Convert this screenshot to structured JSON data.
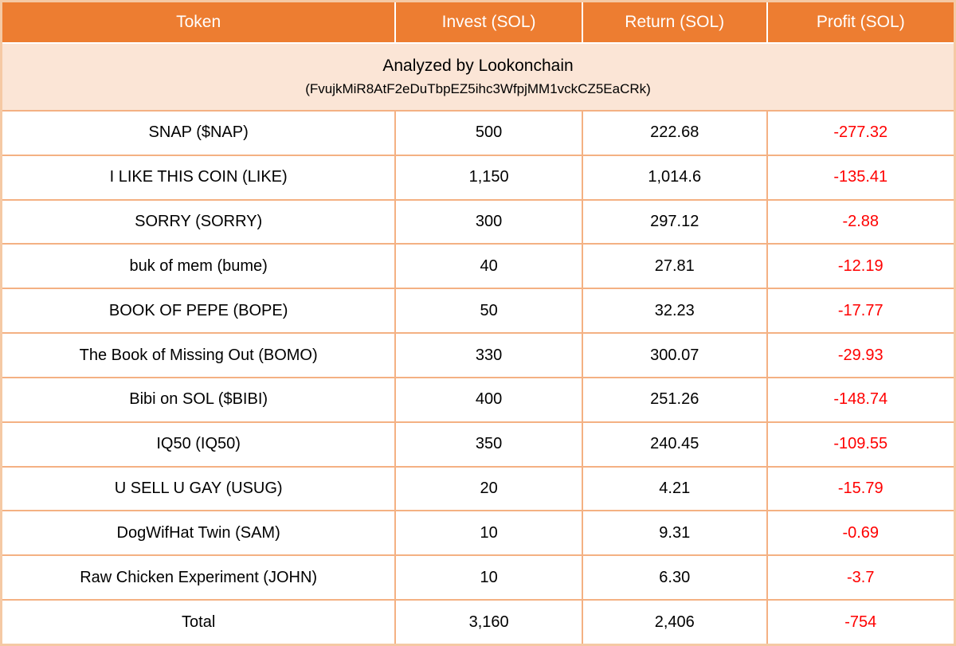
{
  "table": {
    "columns": [
      "Token",
      "Invest (SOL)",
      "Return (SOL)",
      "Profit (SOL)"
    ],
    "banner": {
      "title": "Analyzed by Lookonchain",
      "address": "(FvujkMiR8AtF2eDuTbpEZ5ihc3WfpjMM1vckCZ5EaCRk)"
    },
    "rows": [
      {
        "token": "SNAP ($NAP)",
        "invest": "500",
        "return": "222.68",
        "profit": "-277.32"
      },
      {
        "token": "I LIKE THIS COIN (LIKE)",
        "invest": "1,150",
        "return": "1,014.6",
        "profit": "-135.41"
      },
      {
        "token": "SORRY (SORRY)",
        "invest": "300",
        "return": "297.12",
        "profit": "-2.88"
      },
      {
        "token": "buk of mem (bume)",
        "invest": "40",
        "return": "27.81",
        "profit": "-12.19"
      },
      {
        "token": "BOOK OF PEPE (BOPE)",
        "invest": "50",
        "return": "32.23",
        "profit": "-17.77"
      },
      {
        "token": "The Book of Missing Out (BOMO)",
        "invest": "330",
        "return": "300.07",
        "profit": "-29.93"
      },
      {
        "token": "Bibi on SOL ($BIBI)",
        "invest": "400",
        "return": "251.26",
        "profit": "-148.74"
      },
      {
        "token": "IQ50 (IQ50)",
        "invest": "350",
        "return": "240.45",
        "profit": "-109.55"
      },
      {
        "token": "U SELL U GAY (USUG)",
        "invest": "20",
        "return": "4.21",
        "profit": "-15.79"
      },
      {
        "token": "DogWifHat Twin (SAM)",
        "invest": "10",
        "return": "9.31",
        "profit": "-0.69"
      },
      {
        "token": "Raw Chicken Experiment (JOHN)",
        "invest": "10",
        "return": "6.30",
        "profit": "-3.7"
      },
      {
        "token": "Total",
        "invest": "3,160",
        "return": "2,406",
        "profit": "-754"
      }
    ]
  },
  "colors": {
    "header-bg": "#ED7D31",
    "header-text": "#FFFFFF",
    "banner-bg": "#FBE5D6",
    "border": "#F4B183",
    "outer-border": "#F5C9A4",
    "divider-white": "#FFFFFF",
    "negative": "#FF0000",
    "text": "#000000",
    "row-bg": "#FFFFFF"
  },
  "chart_data": {
    "type": "table",
    "title": "Analyzed by Lookonchain",
    "wallet": "FvujkMiR8AtF2eDuTbpEZ5ihc3WfpjMM1vckCZ5EaCRk",
    "columns": [
      "Token",
      "Invest (SOL)",
      "Return (SOL)",
      "Profit (SOL)"
    ],
    "rows": [
      [
        "SNAP ($NAP)",
        500,
        222.68,
        -277.32
      ],
      [
        "I LIKE THIS COIN (LIKE)",
        1150,
        1014.6,
        -135.41
      ],
      [
        "SORRY (SORRY)",
        300,
        297.12,
        -2.88
      ],
      [
        "buk of mem (bume)",
        40,
        27.81,
        -12.19
      ],
      [
        "BOOK OF PEPE (BOPE)",
        50,
        32.23,
        -17.77
      ],
      [
        "The Book of Missing Out (BOMO)",
        330,
        300.07,
        -29.93
      ],
      [
        "Bibi on SOL ($BIBI)",
        400,
        251.26,
        -148.74
      ],
      [
        "IQ50 (IQ50)",
        350,
        240.45,
        -109.55
      ],
      [
        "U SELL U GAY (USUG)",
        20,
        4.21,
        -15.79
      ],
      [
        "DogWifHat Twin (SAM)",
        10,
        9.31,
        -0.69
      ],
      [
        "Raw Chicken Experiment (JOHN)",
        10,
        6.3,
        -3.7
      ],
      [
        "Total",
        3160,
        2406,
        -754
      ]
    ]
  }
}
